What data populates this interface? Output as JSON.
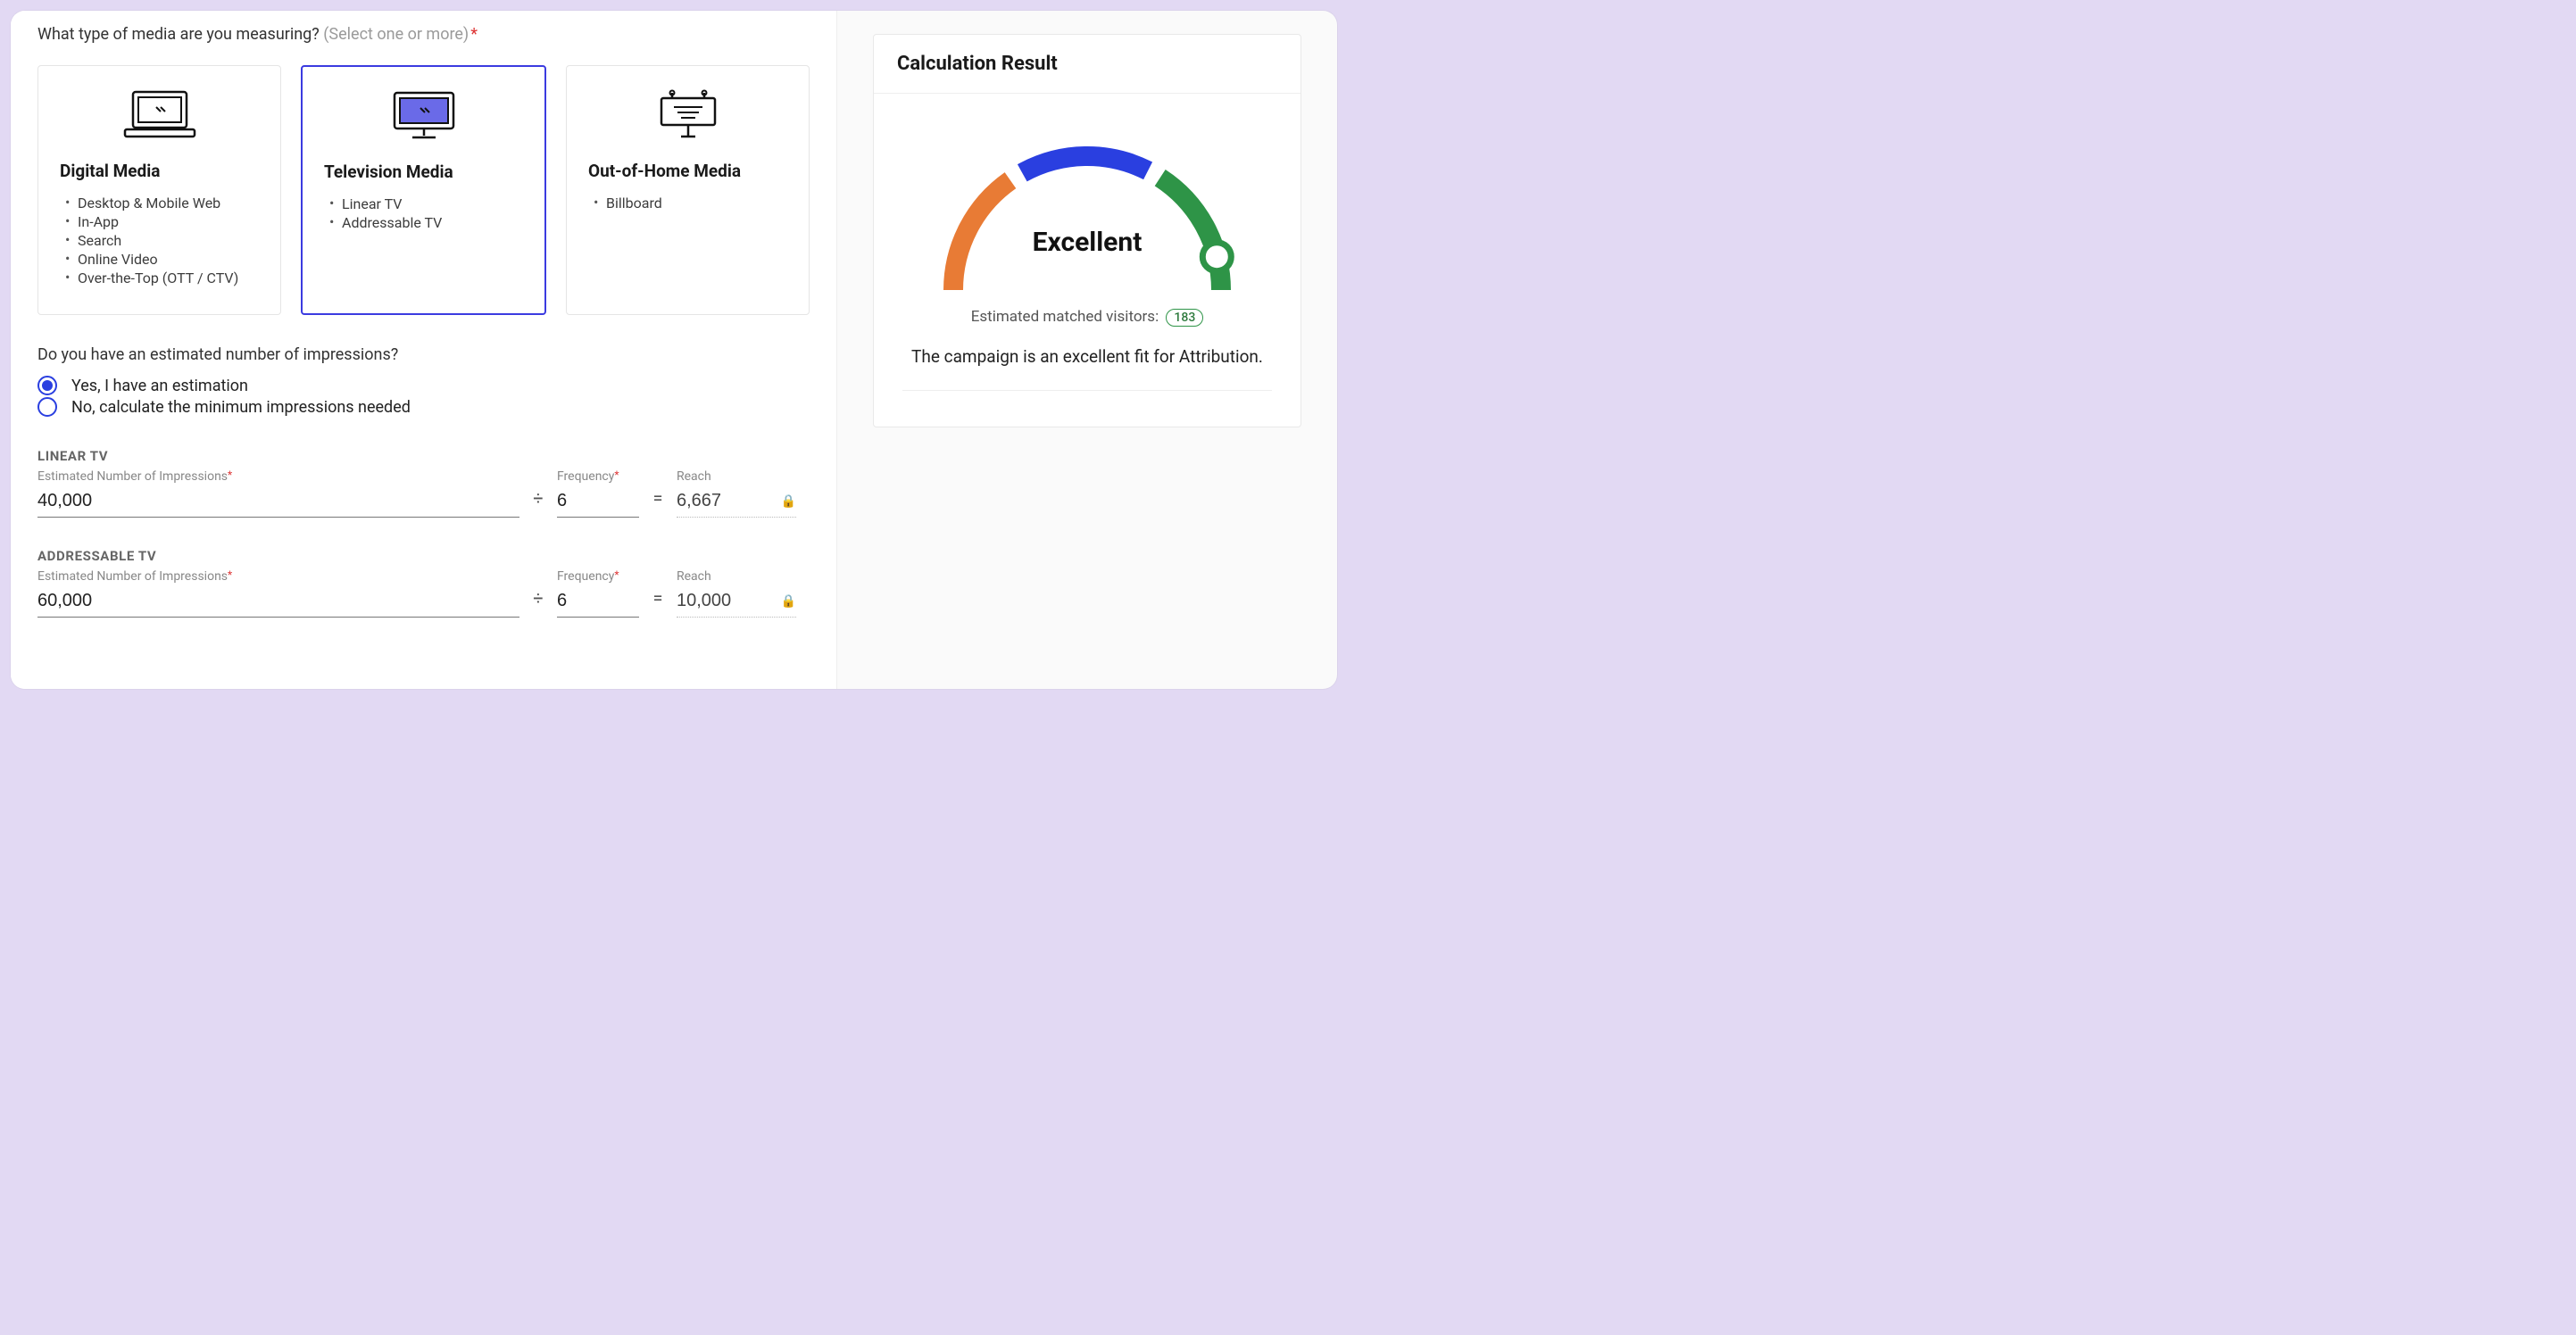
{
  "question": {
    "text": "What type of media are you measuring?",
    "hint": "(Select one or more)",
    "required_marker": "*"
  },
  "cards": [
    {
      "title": "Digital Media",
      "selected": false,
      "items": [
        "Desktop & Mobile Web",
        "In-App",
        "Search",
        "Online Video",
        "Over-the-Top (OTT / CTV)"
      ]
    },
    {
      "title": "Television Media",
      "selected": true,
      "items": [
        "Linear TV",
        "Addressable TV"
      ]
    },
    {
      "title": "Out-of-Home Media",
      "selected": false,
      "items": [
        "Billboard"
      ]
    }
  ],
  "impressions_question": "Do you have an estimated number of impressions?",
  "radios": {
    "yes": "Yes, I have an estimation",
    "no": "No, calculate the minimum impressions needed",
    "selected": "yes"
  },
  "field_labels": {
    "impressions": "Estimated Number of Impressions",
    "frequency": "Frequency",
    "reach": "Reach",
    "divide": "÷",
    "equals": "="
  },
  "sections": [
    {
      "label": "LINEAR TV",
      "impressions": "40,000",
      "frequency": "6",
      "reach": "6,667"
    },
    {
      "label": "ADDRESSABLE TV",
      "impressions": "60,000",
      "frequency": "6",
      "reach": "10,000"
    }
  ],
  "result": {
    "title": "Calculation Result",
    "gauge": {
      "segment_colors": [
        "#e87b35",
        "#2a3fe0",
        "#2e9447"
      ],
      "track_width": 22,
      "needle_pos": 0.92,
      "knob_color": "#ffffff",
      "knob_stroke": "#2e9447"
    },
    "rating": "Excellent",
    "matched_label": "Estimated matched visitors:",
    "matched_value": "183",
    "fit_text": "The campaign is an excellent fit for Attribution."
  }
}
